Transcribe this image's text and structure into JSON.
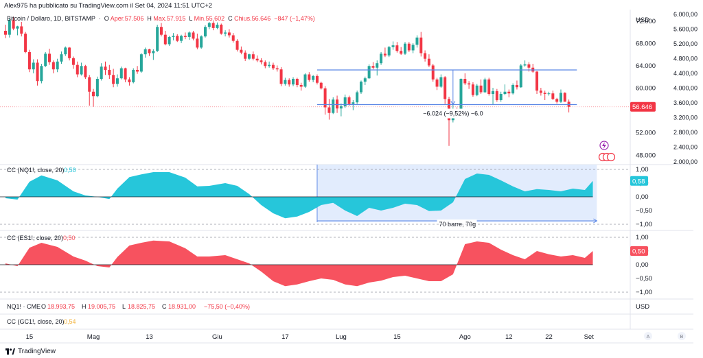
{
  "header": {
    "published": "Alex975 ha pubblicato su TradingView.com il Set 04, 2024 11:51 UTC+2"
  },
  "main_pane": {
    "symbol": "Bitcoin / Dollaro, 1D, BITSTAMP",
    "o_label": "O",
    "o_value": "Aper.57.506",
    "h_label": "H",
    "h_value": "Max.57.915",
    "l_label": "L",
    "l_value": "Min.55.602",
    "c_label": "C",
    "c_value": "Chius.56.646",
    "change": "−847 (−1,47%)",
    "currency": "USD",
    "last_price": "56.646",
    "measure_label": "−6.024 (−9,52%) −6.0"
  },
  "pane_nq": {
    "title": "CC (NQ1!, close, 20)",
    "value": "0,58",
    "range_label": "70 barre, 70g"
  },
  "pane_es": {
    "title": "CC (ES1!, close, 20)",
    "value": "0,50"
  },
  "pane_nqinfo": {
    "symbol": "NQ1! · CME",
    "o": "18.993,75",
    "h": "19.005,75",
    "l": "18.825,75",
    "c": "18.931,00",
    "change": "−75,50 (−0,40%)",
    "currency": "USD"
  },
  "pane_gc": {
    "title": "CC (GC1!, close, 20)",
    "value": "0,54"
  },
  "time_axis": {
    "labels": [
      {
        "t": "15",
        "bar": 6
      },
      {
        "t": "Mag",
        "bar": 22
      },
      {
        "t": "13",
        "bar": 36
      },
      {
        "t": "Giu",
        "bar": 53
      },
      {
        "t": "17",
        "bar": 70
      },
      {
        "t": "Lug",
        "bar": 84
      },
      {
        "t": "15",
        "bar": 98
      },
      {
        "t": "Ago",
        "bar": 115
      },
      {
        "t": "12",
        "bar": 126
      },
      {
        "t": "22",
        "bar": 136
      },
      {
        "t": "Set",
        "bar": 146
      }
    ],
    "auto_btn": "A",
    "log_btn": "B"
  },
  "footer": {
    "brand": "TradingView"
  },
  "colors": {
    "up": "#26a69a",
    "down": "#f23645",
    "nq": "#26c6da",
    "es": "#f7525f",
    "range_fill": "#dbe7fc",
    "range_line": "#5b86e5"
  },
  "chart_data": [
    {
      "type": "candlestick",
      "title": "Bitcoin / Dollaro, 1D, BITSTAMP",
      "ylim": [
        46500,
        74000
      ],
      "y_ticks": [
        {
          "v": 72000,
          "t": "72.000"
        },
        {
          "v": 68000,
          "t": "68.000"
        },
        {
          "v": 64000,
          "t": "64.000"
        },
        {
          "v": 60000,
          "t": "60.000"
        },
        {
          "v": 52000,
          "t": "52.000"
        },
        {
          "v": 48000,
          "t": "48.000"
        }
      ],
      "y_ticks_right": [
        "6.000,00",
        "5.600,00",
        "5.200,00",
        "4.800,00",
        "4.400,00",
        "4.000,00",
        "3.600,00",
        "3.200,00",
        "2.800,00",
        "2.400,00",
        "2.000,00"
      ],
      "levels": [
        63200,
        57000
      ],
      "values": [
        [
          70200,
          71300,
          68900,
          69500
        ],
        [
          69500,
          72400,
          69000,
          72100
        ],
        [
          72100,
          72700,
          70300,
          70600
        ],
        [
          70600,
          71100,
          69400,
          71000
        ],
        [
          71000,
          71800,
          69200,
          69700
        ],
        [
          69700,
          70000,
          66200,
          66400
        ],
        [
          66400,
          66800,
          62800,
          63300
        ],
        [
          63300,
          65100,
          62600,
          64500
        ],
        [
          64500,
          65100,
          60400,
          61200
        ],
        [
          61200,
          64300,
          60800,
          63900
        ],
        [
          63900,
          66400,
          63700,
          66100
        ],
        [
          66100,
          67000,
          64100,
          64600
        ],
        [
          64600,
          64900,
          62600,
          63300
        ],
        [
          63300,
          65200,
          62800,
          64700
        ],
        [
          64700,
          66500,
          64300,
          66000
        ],
        [
          66000,
          67400,
          65700,
          67200
        ],
        [
          67200,
          67300,
          64900,
          65300
        ],
        [
          65300,
          65600,
          63400,
          64100
        ],
        [
          64100,
          64700,
          61900,
          62400
        ],
        [
          62400,
          64500,
          62200,
          63900
        ],
        [
          63900,
          64100,
          61600,
          61900
        ],
        [
          61900,
          62300,
          56800,
          59300
        ],
        [
          59300,
          59800,
          56600,
          58500
        ],
        [
          58500,
          62000,
          58300,
          61600
        ],
        [
          61600,
          64400,
          61300,
          63800
        ],
        [
          63800,
          64700,
          62300,
          63200
        ],
        [
          63200,
          64100,
          61600,
          62300
        ],
        [
          62300,
          63400,
          60100,
          60700
        ],
        [
          60700,
          62400,
          60200,
          61700
        ],
        [
          61700,
          63800,
          61500,
          63500
        ],
        [
          63500,
          63600,
          61000,
          61500
        ],
        [
          61500,
          61900,
          60400,
          61000
        ],
        [
          61000,
          63500,
          60800,
          63200
        ],
        [
          63200,
          63900,
          62500,
          62900
        ],
        [
          62900,
          66200,
          62700,
          66000
        ],
        [
          66000,
          67200,
          65400,
          66900
        ],
        [
          66900,
          67000,
          65700,
          66200
        ],
        [
          66200,
          66900,
          65000,
          66600
        ],
        [
          66600,
          71300,
          66400,
          70900
        ],
        [
          70900,
          71600,
          69200,
          69500
        ],
        [
          69500,
          70200,
          67600,
          67800
        ],
        [
          67800,
          69300,
          67500,
          69100
        ],
        [
          69100,
          69800,
          68500,
          69300
        ],
        [
          69300,
          69600,
          68200,
          68400
        ],
        [
          68400,
          69500,
          68000,
          69300
        ],
        [
          69300,
          69900,
          68700,
          69100
        ],
        [
          69100,
          70100,
          68600,
          69900
        ],
        [
          69900,
          70200,
          68500,
          68800
        ],
        [
          68800,
          69700,
          66900,
          67200
        ],
        [
          67200,
          69400,
          67000,
          69200
        ],
        [
          69200,
          71200,
          69000,
          70900
        ],
        [
          70900,
          71800,
          70500,
          71600
        ],
        [
          71600,
          71900,
          70300,
          70700
        ],
        [
          70700,
          71700,
          70500,
          71300
        ],
        [
          71300,
          71500,
          69500,
          69700
        ],
        [
          69700,
          70300,
          69200,
          69900
        ],
        [
          69900,
          70500,
          69000,
          69400
        ],
        [
          69400,
          69800,
          68100,
          68400
        ],
        [
          68400,
          68700,
          66500,
          66800
        ],
        [
          66800,
          67400,
          66000,
          66300
        ],
        [
          66300,
          66700,
          64800,
          65200
        ],
        [
          65200,
          66100,
          65000,
          66000
        ],
        [
          66000,
          66500,
          64900,
          65200
        ],
        [
          65200,
          65800,
          64600,
          64900
        ],
        [
          64900,
          65300,
          64200,
          64600
        ],
        [
          64600,
          64900,
          63500,
          63900
        ],
        [
          63900,
          64700,
          63600,
          64100
        ],
        [
          64100,
          64500,
          63200,
          63500
        ],
        [
          63500,
          64000,
          62900,
          63300
        ],
        [
          63300,
          63700,
          60300,
          60700
        ],
        [
          60700,
          61800,
          60400,
          61400
        ],
        [
          61400,
          61700,
          60200,
          60600
        ],
        [
          60600,
          61900,
          60300,
          61600
        ],
        [
          61600,
          61800,
          60100,
          60500
        ],
        [
          60500,
          60900,
          59500,
          60200
        ],
        [
          60200,
          62600,
          60000,
          62400
        ],
        [
          62400,
          62800,
          61100,
          61400
        ],
        [
          61400,
          62300,
          61000,
          62100
        ],
        [
          62100,
          62400,
          60600,
          60900
        ],
        [
          60900,
          61100,
          59700,
          59900
        ],
        [
          59900,
          60300,
          55200,
          56500
        ],
        [
          56500,
          58000,
          54300,
          55500
        ],
        [
          55500,
          58300,
          55300,
          57900
        ],
        [
          57900,
          58600,
          55500,
          56300
        ],
        [
          56300,
          57200,
          54900,
          56700
        ],
        [
          56700,
          58800,
          56400,
          58300
        ],
        [
          58300,
          58600,
          56800,
          57100
        ],
        [
          57100,
          57800,
          56000,
          57400
        ],
        [
          57400,
          59500,
          57100,
          59200
        ],
        [
          59200,
          61300,
          58900,
          61100
        ],
        [
          61100,
          62000,
          60500,
          61700
        ],
        [
          61700,
          64200,
          61600,
          63900
        ],
        [
          63900,
          64600,
          63300,
          63600
        ],
        [
          63600,
          64900,
          62200,
          64400
        ],
        [
          64400,
          66400,
          64100,
          66100
        ],
        [
          66100,
          67200,
          65500,
          65800
        ],
        [
          65800,
          67500,
          65500,
          67300
        ],
        [
          67300,
          68300,
          66800,
          67600
        ],
        [
          67600,
          68200,
          66300,
          66600
        ],
        [
          66600,
          67300,
          65900,
          66100
        ],
        [
          66100,
          68200,
          65900,
          67900
        ],
        [
          67900,
          68200,
          66400,
          66700
        ],
        [
          66700,
          68000,
          66200,
          67700
        ],
        [
          67700,
          69400,
          67200,
          69000
        ],
        [
          69000,
          70000,
          65600,
          66200
        ],
        [
          66200,
          66700,
          64700,
          65200
        ],
        [
          65200,
          66000,
          63700,
          64000
        ],
        [
          64000,
          64300,
          61100,
          61500
        ],
        [
          61500,
          61800,
          59600,
          60200
        ],
        [
          60200,
          62400,
          60000,
          61900
        ],
        [
          61900,
          62100,
          57100,
          58000
        ],
        [
          58000,
          58400,
          49600,
          54200
        ],
        [
          54200,
          57100,
          53800,
          56000
        ],
        [
          56000,
          56500,
          54800,
          55200
        ],
        [
          55200,
          61700,
          55000,
          61600
        ],
        [
          61600,
          62600,
          60500,
          60800
        ],
        [
          60800,
          61200,
          59800,
          60600
        ],
        [
          60600,
          61000,
          58400,
          58700
        ],
        [
          58700,
          60700,
          58500,
          60400
        ],
        [
          60400,
          61500,
          58900,
          59200
        ],
        [
          59200,
          61800,
          59100,
          61500
        ],
        [
          61500,
          61800,
          58600,
          58900
        ],
        [
          58900,
          60000,
          57000,
          59400
        ],
        [
          59400,
          59800,
          57500,
          57800
        ],
        [
          57800,
          59300,
          57500,
          58900
        ],
        [
          58900,
          60600,
          58700,
          59300
        ],
        [
          59300,
          59700,
          58300,
          59000
        ],
        [
          59000,
          60800,
          58800,
          60500
        ],
        [
          60500,
          61300,
          59700,
          60100
        ],
        [
          60100,
          64300,
          60000,
          64000
        ],
        [
          64000,
          64900,
          63800,
          64200
        ],
        [
          64200,
          64600,
          62900,
          63600
        ],
        [
          63600,
          64300,
          62700,
          62900
        ],
        [
          62900,
          63000,
          58900,
          59500
        ],
        [
          59500,
          60000,
          58600,
          59100
        ],
        [
          59100,
          59500,
          57800,
          58900
        ],
        [
          58900,
          59300,
          58600,
          59000
        ],
        [
          59000,
          59500,
          57800,
          58000
        ],
        [
          58000,
          58200,
          57200,
          57500
        ],
        [
          57500,
          59700,
          57300,
          59100
        ],
        [
          59100,
          59200,
          57900,
          57500
        ],
        [
          57500,
          57900,
          55600,
          56600
        ]
      ]
    },
    {
      "type": "area",
      "title": "CC (NQ1!, close, 20)",
      "ylim": [
        -1,
        1
      ],
      "y_ticks": [
        {
          "v": 1,
          "t": "1,00"
        },
        {
          "v": 0.5,
          "t": "0,50"
        },
        {
          "v": 0,
          "t": "0,00"
        },
        {
          "v": -0.5,
          "t": "−0,50"
        },
        {
          "v": -1,
          "t": "−1,00"
        }
      ],
      "x": [
        0,
        3,
        6,
        9,
        13,
        17,
        20,
        23,
        26,
        28,
        31,
        34,
        37,
        41,
        45,
        48,
        51,
        55,
        58,
        61,
        64,
        67,
        70,
        73,
        76,
        79,
        82,
        85,
        88,
        91,
        94,
        97,
        100,
        103,
        106,
        109,
        112,
        115,
        118,
        121,
        124,
        127,
        130,
        133,
        136,
        139,
        142,
        145,
        147
      ],
      "values": [
        -0.05,
        -0.1,
        0.55,
        0.78,
        0.6,
        0.2,
        0.05,
        0.0,
        -0.08,
        0.3,
        0.72,
        0.82,
        0.9,
        0.9,
        0.7,
        0.38,
        0.4,
        0.5,
        0.4,
        0.1,
        -0.3,
        -0.6,
        -0.78,
        -0.72,
        -0.55,
        -0.3,
        -0.22,
        -0.5,
        -0.7,
        -0.4,
        -0.5,
        -0.4,
        -0.25,
        -0.3,
        -0.52,
        -0.5,
        -0.2,
        0.65,
        0.85,
        0.8,
        0.6,
        0.38,
        0.2,
        0.28,
        0.25,
        0.2,
        0.3,
        0.25,
        0.58
      ]
    },
    {
      "type": "area",
      "title": "CC (ES1!, close, 20)",
      "ylim": [
        -1,
        1
      ],
      "y_ticks": [
        {
          "v": 1,
          "t": "1,00"
        },
        {
          "v": 0.5,
          "t": "0,50"
        },
        {
          "v": 0,
          "t": "0,00"
        },
        {
          "v": -0.5,
          "t": "−0,50"
        },
        {
          "v": -1,
          "t": "−1,00"
        }
      ],
      "x": [
        0,
        3,
        6,
        9,
        13,
        17,
        20,
        23,
        26,
        28,
        31,
        34,
        37,
        41,
        45,
        48,
        51,
        55,
        58,
        61,
        64,
        67,
        70,
        73,
        76,
        79,
        82,
        85,
        88,
        91,
        94,
        97,
        100,
        103,
        106,
        109,
        112,
        115,
        118,
        121,
        124,
        127,
        130,
        133,
        136,
        139,
        142,
        145,
        147
      ],
      "values": [
        0.05,
        -0.05,
        0.62,
        0.8,
        0.65,
        0.3,
        0.15,
        -0.05,
        -0.1,
        0.28,
        0.7,
        0.8,
        0.88,
        0.85,
        0.6,
        0.3,
        0.3,
        0.35,
        0.2,
        0.05,
        -0.25,
        -0.6,
        -0.78,
        -0.72,
        -0.6,
        -0.5,
        -0.55,
        -0.72,
        -0.78,
        -0.65,
        -0.58,
        -0.45,
        -0.4,
        -0.5,
        -0.6,
        -0.6,
        -0.35,
        0.75,
        0.85,
        0.8,
        0.55,
        0.35,
        0.2,
        0.5,
        0.38,
        0.3,
        0.35,
        0.25,
        0.5
      ]
    }
  ]
}
